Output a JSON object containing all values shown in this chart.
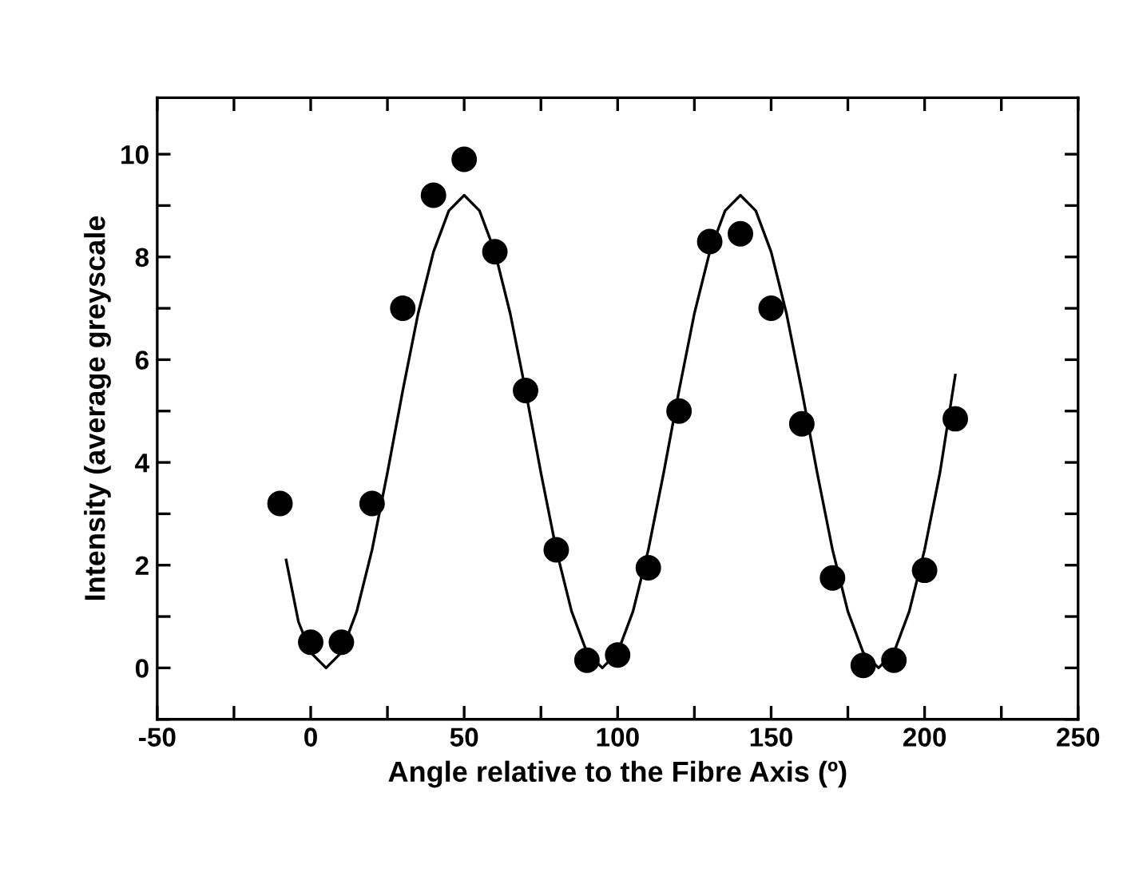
{
  "chart_data": {
    "type": "scatter",
    "xlabel": "Angle relative to the Fibre Axis (º)",
    "ylabel": "Intensity (average greyscale",
    "xlim": [
      -50,
      250
    ],
    "ylim": [
      -1,
      11.1
    ],
    "xticks": [
      -50,
      {
        "value": -25,
        "label": null
      },
      0,
      {
        "value": 25,
        "label": null
      },
      50,
      {
        "value": 75,
        "label": null
      },
      100,
      {
        "value": 125,
        "label": null
      },
      150,
      {
        "value": 175,
        "label": null
      },
      200,
      {
        "value": 225,
        "label": null
      },
      250
    ],
    "yticks": [
      {
        "value": -1,
        "label": null
      },
      0,
      {
        "value": 1,
        "label": null
      },
      2,
      {
        "value": 3,
        "label": null
      },
      4,
      {
        "value": 5,
        "label": null
      },
      6,
      {
        "value": 7,
        "label": null
      },
      8,
      {
        "value": 9,
        "label": null
      },
      10
    ],
    "grid": false,
    "legend": false,
    "series": [
      {
        "color": "#000000",
        "marker": "circle",
        "x": [
          -10,
          0,
          10,
          20,
          30,
          40,
          50,
          60,
          70,
          80,
          90,
          100,
          110,
          120,
          130,
          140,
          150,
          160,
          170,
          180,
          190,
          200,
          210
        ],
        "values": [
          3.2,
          0.5,
          0.5,
          3.2,
          7.0,
          9.2,
          9.9,
          8.1,
          5.4,
          2.3,
          0.15,
          0.25,
          1.95,
          5.0,
          8.3,
          8.45,
          7.0,
          4.75,
          1.75,
          0.05,
          0.15,
          1.9,
          4.85
        ]
      },
      {
        "type": "line",
        "color": "#000000",
        "marker": "none",
        "line_style": "solid",
        "x": [
          -8,
          -4,
          0,
          5,
          10,
          15,
          20,
          25,
          30,
          35,
          40,
          45,
          50,
          55,
          60,
          65,
          70,
          75,
          80,
          85,
          90,
          95,
          100,
          105,
          110,
          115,
          120,
          125,
          130,
          135,
          140,
          145,
          150,
          155,
          160,
          165,
          170,
          175,
          180,
          185,
          190,
          195,
          200,
          205,
          210
        ],
        "values": [
          2.1,
          0.9,
          0.3,
          0,
          0.3,
          1.1,
          2.3,
          3.8,
          5.4,
          6.9,
          8.1,
          8.9,
          9.2,
          8.9,
          8.1,
          6.9,
          5.4,
          3.8,
          2.3,
          1.1,
          0.3,
          0,
          0.3,
          1.1,
          2.3,
          3.8,
          5.4,
          6.9,
          8.1,
          8.9,
          9.2,
          8.9,
          8.1,
          6.9,
          5.4,
          3.8,
          2.3,
          1.1,
          0.3,
          0,
          0.3,
          1.1,
          2.3,
          3.8,
          5.7
        ]
      }
    ]
  }
}
